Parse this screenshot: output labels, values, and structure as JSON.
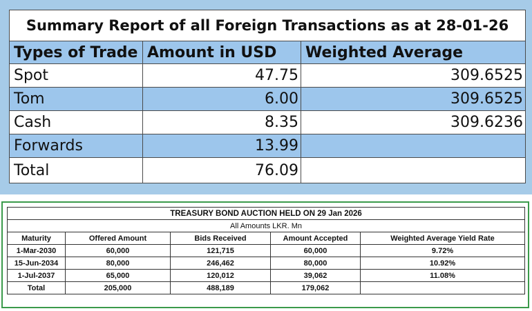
{
  "fx_summary": {
    "title": "Summary Report of all Foreign Transactions as at 28-01-26",
    "headers": [
      "Types of Trade",
      "Amount in USD",
      "Weighted Average"
    ],
    "rows": [
      {
        "type": "Spot",
        "amount": "47.75",
        "weighted": "309.6525"
      },
      {
        "type": "Tom",
        "amount": "6.00",
        "weighted": "309.6525"
      },
      {
        "type": "Cash",
        "amount": "8.35",
        "weighted": "309.6236"
      },
      {
        "type": "Forwards",
        "amount": "13.99",
        "weighted": ""
      },
      {
        "type": "Total",
        "amount": "76.09",
        "weighted": ""
      }
    ],
    "colors": {
      "header_fill": "#9dc6ec",
      "panel_bg": "#a6cbe8"
    }
  },
  "bond_auction": {
    "title": "TREASURY BOND AUCTION HELD ON 29 Jan 2026",
    "subtitle": "All Amounts LKR. Mn",
    "headers": [
      "Maturity",
      "Offered Amount",
      "Bids Received",
      "Amount Accepted",
      "Weighted Average Yield Rate"
    ],
    "rows": [
      [
        "1-Mar-2030",
        "60,000",
        "121,715",
        "60,000",
        "9.72%"
      ],
      [
        "15-Jun-2034",
        "80,000",
        "246,462",
        "80,000",
        "10.92%"
      ],
      [
        "1-Jul-2037",
        "65,000",
        "120,012",
        "39,062",
        "11.08%"
      ],
      [
        "Total",
        "205,000",
        "488,189",
        "179,062",
        ""
      ]
    ],
    "colors": {
      "frame": "#3a9a4a"
    }
  }
}
